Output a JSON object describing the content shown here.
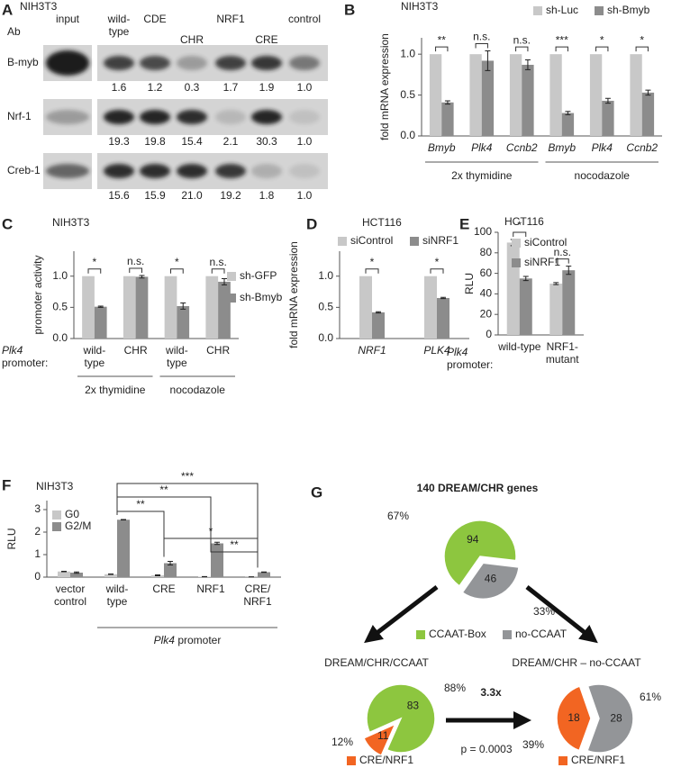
{
  "blot": {
    "panel": "A",
    "cell_line": "NIH3T3",
    "ab_label": "Ab",
    "lanes": [
      [
        "input"
      ],
      [
        "wild-",
        "type"
      ],
      [
        "CDE"
      ],
      [
        "CHR"
      ],
      [
        "NRF1"
      ],
      [
        "CRE"
      ],
      [
        "control"
      ]
    ],
    "rows": [
      {
        "antibody": "B-myb",
        "quantities": [
          "1.6",
          "1.2",
          "0.3",
          "1.7",
          "1.9",
          "1.0"
        ]
      },
      {
        "antibody": "Nrf-1",
        "quantities": [
          "19.3",
          "19.8",
          "15.4",
          "2.1",
          "30.3",
          "1.0"
        ]
      },
      {
        "antibody": "Creb-1",
        "quantities": [
          "15.6",
          "15.9",
          "21.0",
          "19.2",
          "1.8",
          "1.0"
        ]
      }
    ]
  },
  "chart_data": [
    {
      "type": "bar",
      "panel": "B",
      "title": "NIH3T3",
      "ylabel": "fold mRNA expression",
      "categories": [
        "Bmyb",
        "Plk4",
        "Ccnb2",
        "Bmyb",
        "Plk4",
        "Ccnb2"
      ],
      "italic_categories": true,
      "group_labels": [
        "2x thymidine",
        "nocodazole"
      ],
      "series": [
        {
          "name": "sh-Luc",
          "color": "#c8c8c8",
          "values": [
            1,
            1,
            1,
            1,
            1,
            1
          ]
        },
        {
          "name": "sh-Bmyb",
          "color": "#8c8c8c",
          "values": [
            0.41,
            0.92,
            0.87,
            0.28,
            0.43,
            0.53
          ],
          "errors": [
            0.02,
            0.12,
            0.06,
            0.02,
            0.03,
            0.03
          ]
        }
      ],
      "significance": [
        "**",
        "n.s.",
        "n.s.",
        "***",
        "*",
        "*"
      ],
      "ylim": [
        0,
        1.2
      ],
      "yticks": [
        {
          "value": 0,
          "label": "0.0"
        },
        {
          "value": 0.5,
          "label": "0.5"
        },
        {
          "value": 1,
          "label": "1.0"
        }
      ]
    },
    {
      "type": "bar",
      "panel": "C",
      "title": "NIH3T3",
      "ylabel": "promoter activity",
      "x_prefix": {
        "italic": "Plk4",
        "text": "promoter:"
      },
      "categories": [
        [
          "wild-",
          "type"
        ],
        [
          "CHR"
        ],
        [
          "wild-",
          "type"
        ],
        [
          "CHR"
        ]
      ],
      "group_labels": [
        "2x thymidine",
        "nocodazole"
      ],
      "series": [
        {
          "name": "sh-GFP",
          "color": "#c8c8c8",
          "values": [
            1,
            1,
            1,
            1
          ]
        },
        {
          "name": "sh-Bmyb",
          "color": "#8c8c8c",
          "values": [
            0.51,
            0.99,
            0.52,
            0.91
          ],
          "errors": [
            0.01,
            0.02,
            0.05,
            0.05
          ]
        }
      ],
      "significance": [
        "*",
        "n.s.",
        "*",
        "n.s."
      ],
      "ylim": [
        0,
        1.4
      ],
      "yticks": [
        {
          "value": 0,
          "label": "0.0"
        },
        {
          "value": 0.5,
          "label": "0.5"
        },
        {
          "value": 1,
          "label": "1.0"
        }
      ]
    },
    {
      "type": "bar",
      "panel": "D",
      "title": "HCT116",
      "ylabel": "fold mRNA expression",
      "categories": [
        "NRF1",
        "PLK4"
      ],
      "italic_categories": true,
      "series": [
        {
          "name": "siControl",
          "color": "#c8c8c8",
          "values": [
            1,
            1
          ]
        },
        {
          "name": "siNRF1",
          "color": "#8c8c8c",
          "values": [
            0.42,
            0.65
          ],
          "errors": [
            0.01,
            0.01
          ]
        }
      ],
      "significance": [
        "*",
        "*"
      ],
      "ylim": [
        0,
        1.4
      ],
      "yticks": [
        {
          "value": 0,
          "label": "0.0"
        },
        {
          "value": 0.5,
          "label": "0.5"
        },
        {
          "value": 1,
          "label": "1.0"
        }
      ]
    },
    {
      "type": "bar",
      "panel": "E",
      "title": "HCT116",
      "ylabel": "RLU",
      "x_prefix": {
        "italic": "Plk4",
        "text": "promoter:"
      },
      "categories": [
        [
          "wild-type"
        ],
        [
          "NRF1-",
          "mutant"
        ]
      ],
      "series": [
        {
          "name": "siControl",
          "color": "#c8c8c8",
          "values": [
            90,
            50
          ],
          "errors": [
            3,
            1
          ]
        },
        {
          "name": "siNRF1",
          "color": "#8c8c8c",
          "values": [
            55,
            63
          ],
          "errors": [
            2,
            4
          ]
        }
      ],
      "significance": [
        "*",
        "n.s."
      ],
      "ylim": [
        0,
        100
      ],
      "yticks": [
        0,
        20,
        40,
        60,
        80,
        100
      ]
    },
    {
      "type": "bar",
      "panel": "F",
      "title": "NIH3T3",
      "ylabel": "RLU",
      "categories": [
        [
          "vector",
          "control"
        ],
        [
          "wild-",
          "type"
        ],
        [
          "CRE"
        ],
        [
          "NRF1"
        ],
        [
          "CRE/",
          "NRF1"
        ]
      ],
      "group_label": {
        "italic": "Plk4",
        "text": "promoter"
      },
      "series": [
        {
          "name": "G0",
          "color": "#c8c8c8",
          "values": [
            0.25,
            0.13,
            0.08,
            0.02,
            0.01
          ],
          "errors": [
            0.01,
            0.01,
            0.02,
            0.005,
            0.005
          ]
        },
        {
          "name": "G2/M",
          "color": "#8c8c8c",
          "values": [
            0.2,
            2.55,
            0.62,
            1.5,
            0.22
          ],
          "errors": [
            0.03,
            0.01,
            0.08,
            0.05,
            0.01
          ]
        }
      ],
      "comparisons": [
        {
          "between": [
            "wild-type",
            "CRE"
          ],
          "label": "**"
        },
        {
          "between": [
            "wild-type",
            "NRF1"
          ],
          "label": "**"
        },
        {
          "between": [
            "wild-type",
            "CRE/NRF1"
          ],
          "label": "***"
        },
        {
          "between": [
            "CRE",
            "CRE/NRF1"
          ],
          "label": "*"
        },
        {
          "between": [
            "NRF1",
            "CRE/NRF1"
          ],
          "label": "**"
        }
      ],
      "ylim": [
        0,
        3.4
      ],
      "yticks": [
        0,
        1,
        2,
        3
      ]
    },
    {
      "type": "pie",
      "panel": "G",
      "title": "140 DREAM/CHR genes",
      "values": [
        94,
        46
      ],
      "colors": [
        "#8dc63f",
        "#939598"
      ],
      "labels": [
        "CCAAT-Box",
        "no-CCAAT"
      ],
      "percent_labels": [
        "67%",
        "33%"
      ],
      "annotations": [
        "3.3x",
        "p = 0.0003"
      ]
    },
    {
      "type": "pie",
      "title": "DREAM/CHR/CCAAT",
      "values": [
        83,
        11
      ],
      "colors": [
        "#8dc63f",
        "#f26522"
      ],
      "labels": [
        null,
        "CRE/NRF1"
      ],
      "percent_labels": [
        "88%",
        "12%"
      ]
    },
    {
      "type": "pie",
      "title": "DREAM/CHR – no-CCAAT",
      "values": [
        18,
        28
      ],
      "colors": [
        "#f26522",
        "#939598"
      ],
      "labels": [
        "CRE/NRF1",
        null
      ],
      "percent_labels": [
        "39%",
        "61%"
      ]
    }
  ]
}
